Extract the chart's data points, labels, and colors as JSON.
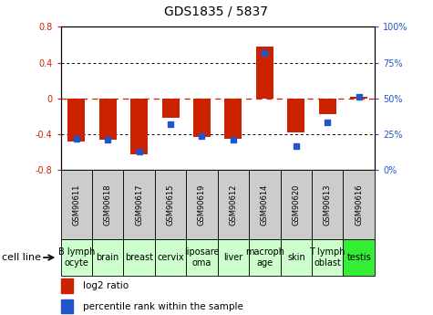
{
  "title": "GDS1835 / 5837",
  "samples": [
    "GSM90611",
    "GSM90618",
    "GSM90617",
    "GSM90615",
    "GSM90619",
    "GSM90612",
    "GSM90614",
    "GSM90620",
    "GSM90613",
    "GSM90616"
  ],
  "cell_lines": [
    "B lymph\nocyte",
    "brain",
    "breast",
    "cervix",
    "liposare\noma",
    "liver",
    "macroph\nage",
    "skin",
    "T lymph\noblast",
    "testis"
  ],
  "cell_line_colors": [
    "#ccffcc",
    "#ccffcc",
    "#ccffcc",
    "#ccffcc",
    "#ccffcc",
    "#ccffcc",
    "#ccffcc",
    "#ccffcc",
    "#ccffcc",
    "#33ee33"
  ],
  "log2_ratio": [
    -0.48,
    -0.46,
    -0.62,
    -0.22,
    -0.43,
    -0.45,
    0.58,
    -0.38,
    -0.18,
    0.02
  ],
  "percentile_rank": [
    22,
    21,
    13,
    32,
    24,
    21,
    82,
    17,
    33,
    51
  ],
  "ylim_left": [
    -0.8,
    0.8
  ],
  "ylim_right": [
    0,
    100
  ],
  "bar_color": "#cc2200",
  "dot_color": "#2255cc",
  "bg_color": "#ffffff",
  "zero_line_color": "#cc2200",
  "title_fontsize": 10,
  "tick_fontsize": 7,
  "legend_fontsize": 7.5,
  "sample_fontsize": 6,
  "cell_fontsize": 7,
  "sample_bg_color": "#cccccc",
  "cell_line_label_fontsize": 8
}
